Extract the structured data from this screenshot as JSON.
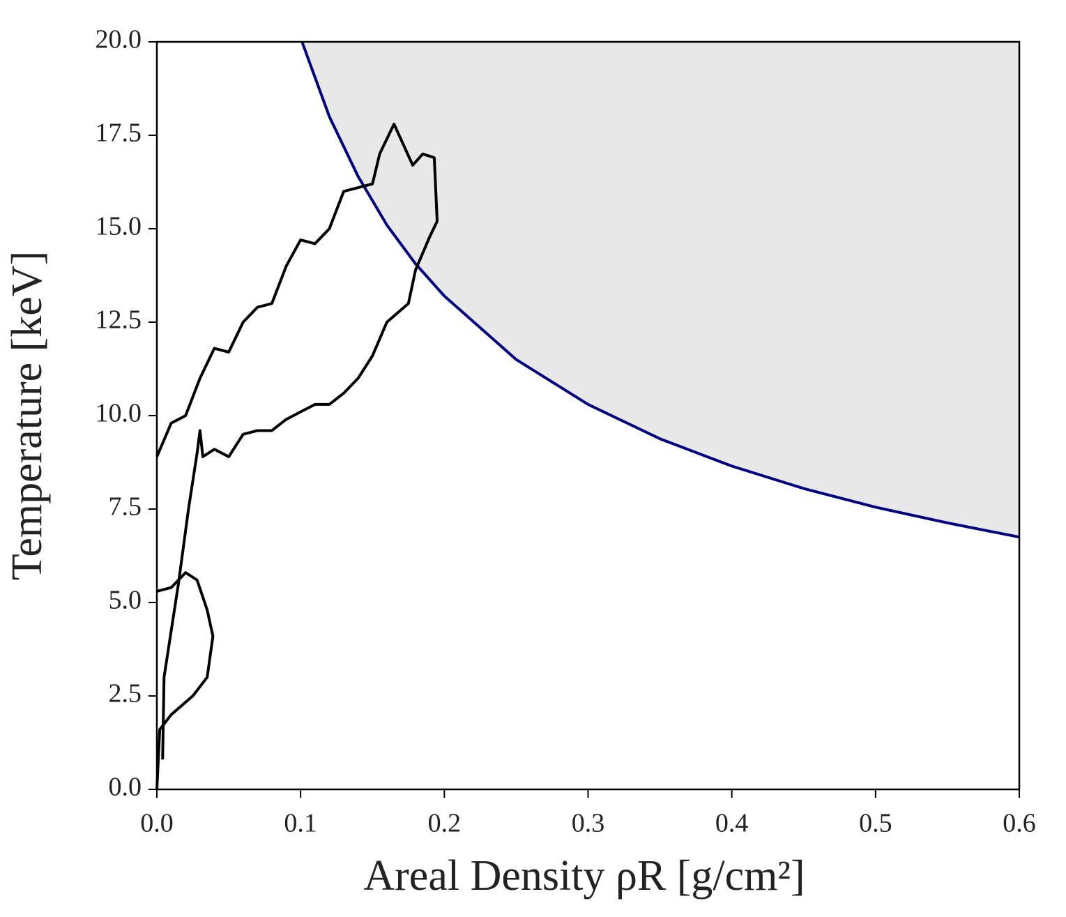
{
  "chart_data": {
    "type": "line",
    "xlabel": "Areal Density ρR [g/cm²]",
    "ylabel": "Temperature [keV]",
    "xlim": [
      0,
      0.6
    ],
    "ylim": [
      0,
      20
    ],
    "xticks": [
      {
        "value": 0,
        "label": "0.0"
      },
      0.1,
      0.2,
      0.3,
      0.4,
      0.5,
      0.6
    ],
    "yticks": [
      {
        "value": 0,
        "label": "0.0"
      },
      2.5,
      {
        "value": 5,
        "label": "5.0"
      },
      7.5,
      {
        "value": 10,
        "label": "10.0"
      },
      12.5,
      {
        "value": 15,
        "label": "15.0"
      },
      17.5,
      {
        "value": 20,
        "label": "20.0"
      }
    ],
    "grid": false,
    "series": [
      {
        "color": "#000080",
        "fill": "#e8e8e8",
        "x": [
          0.101,
          0.12,
          0.14,
          0.16,
          0.18,
          0.2,
          0.25,
          0.3,
          0.35,
          0.4,
          0.45,
          0.5,
          0.55,
          0.6
        ],
        "values": [
          20,
          18.0,
          16.4,
          15.1,
          14.06,
          13.2,
          11.5,
          10.3,
          9.38,
          8.65,
          8.05,
          7.55,
          7.13,
          6.75
        ]
      },
      {
        "color": "#000000",
        "x": [
          0,
          0.002,
          0.01,
          0.025,
          0.035,
          0.039,
          0.035,
          0.028,
          0.02,
          0.01,
          0,
          null,
          0.004,
          0.005,
          0.015,
          0.022,
          0.028,
          0.03,
          0.032,
          0.04,
          0.05,
          0.06,
          0.07,
          0.08,
          0.09,
          0.1,
          0.11,
          0.12,
          0.13,
          0.14,
          0.15,
          0.16,
          0.175,
          0.18,
          0.19,
          0.195,
          0.193,
          0.185,
          0.178,
          0.165,
          0.155,
          0.15,
          0.14,
          0.13,
          0.12,
          0.11,
          0.1,
          0.09,
          0.08,
          0.07,
          0.06,
          0.05,
          0.04,
          0.03,
          0.02,
          0.01,
          0
        ],
        "values": [
          0,
          1.6,
          2.0,
          2.5,
          3.0,
          4.1,
          4.8,
          5.6,
          5.8,
          5.4,
          5.3,
          null,
          0.8,
          3.0,
          5.5,
          7.5,
          9.0,
          9.6,
          8.9,
          9.1,
          8.9,
          9.5,
          9.6,
          9.6,
          9.9,
          10.1,
          10.3,
          10.3,
          10.6,
          11.0,
          11.6,
          12.5,
          13.0,
          13.9,
          14.8,
          15.2,
          16.9,
          17.0,
          16.7,
          17.8,
          17.0,
          16.2,
          16.1,
          16.0,
          15.0,
          14.6,
          14.7,
          14.0,
          13.0,
          12.9,
          12.5,
          11.7,
          11.8,
          11.0,
          10.0,
          9.8,
          8.9
        ]
      }
    ]
  }
}
